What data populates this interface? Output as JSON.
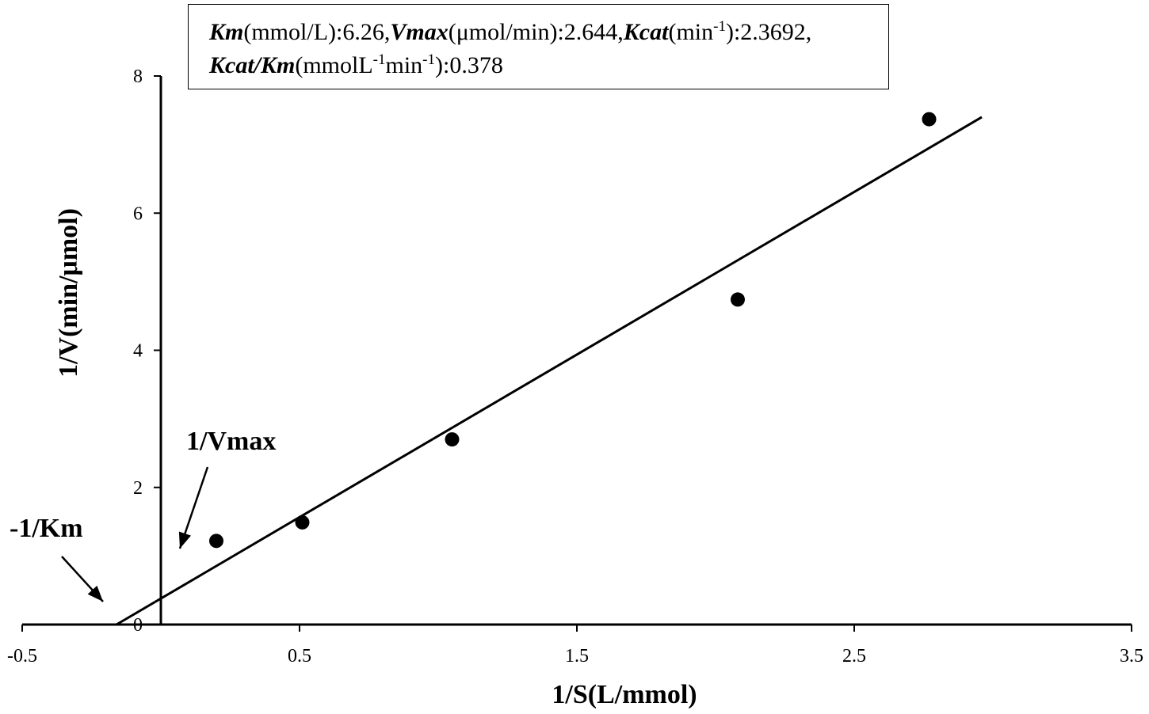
{
  "chart_data": {
    "type": "scatter",
    "title": "",
    "xlabel": "1/S(L/mmol)",
    "ylabel": "1/V(min/μmol)",
    "xlim": [
      -0.5,
      3.5
    ],
    "ylim": [
      0,
      8
    ],
    "x_ticks": [
      -0.5,
      0.5,
      1.5,
      2.5,
      3.5
    ],
    "y_ticks": [
      0,
      2,
      4,
      6,
      8
    ],
    "x_tick_labels": [
      "-0.5",
      "0.5",
      "1.5",
      "2.5",
      "3.5"
    ],
    "y_tick_labels": [
      "0",
      "2",
      "4",
      "6",
      "8"
    ],
    "grid": false,
    "series": [
      {
        "type": "scatter",
        "x": [
          0.2,
          0.51,
          1.05,
          2.08,
          2.77
        ],
        "y": [
          1.22,
          1.49,
          2.7,
          4.74,
          7.37
        ]
      },
      {
        "type": "line",
        "x": [
          -0.16,
          2.96
        ],
        "y": [
          0.0,
          7.4
        ]
      }
    ],
    "annotations": {
      "vmax_label": "1/Vmax",
      "km_label": "-1/Km"
    },
    "parameters": {
      "km_name": "Km",
      "km_unit": "(mmol/L):",
      "km_value": "6.26",
      "vmax_name": "Vmax",
      "vmax_unit": "(μmol/min):",
      "vmax_value": "2.644",
      "kcat_name": "Kcat",
      "kcat_unit_pre": "(min",
      "kcat_unit_exp": "-1",
      "kcat_unit_post": "):",
      "kcat_value": "2.3692",
      "kcatkm_name": "Kcat/Km",
      "kcatkm_unit_pre": "(mmolL",
      "kcatkm_unit_exp1": "-1",
      "kcatkm_unit_mid": "min",
      "kcatkm_unit_exp2": "-1",
      "kcatkm_unit_post": "):",
      "kcatkm_value": "0.378"
    }
  }
}
